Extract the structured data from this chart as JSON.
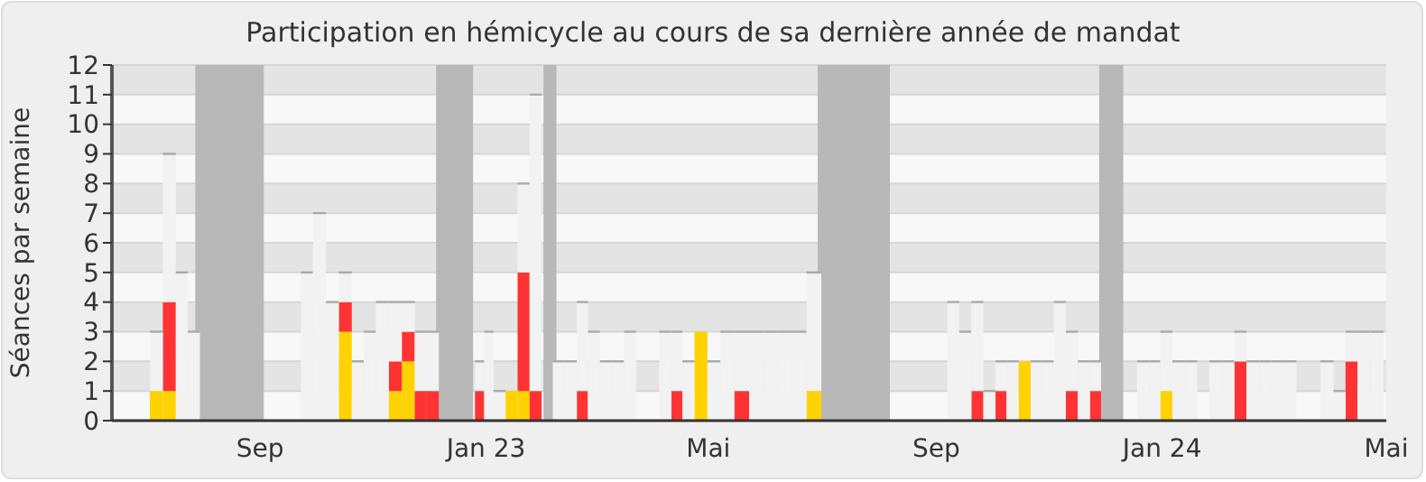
{
  "chart_data": {
    "type": "bar",
    "title": "Participation en hémicycle au cours de sa dernière année de mandat",
    "ylabel": "Séances par semaine",
    "stacked": true,
    "grid": "y",
    "x": [
      "2022-06-23",
      "2022-06-30",
      "2022-07-07",
      "2022-07-14",
      "2022-07-21",
      "2022-07-27",
      "2022-08-03",
      "2022-08-10",
      "2022-08-17",
      "2022-08-24",
      "2022-08-30",
      "2022-09-06",
      "2022-09-13",
      "2022-09-20",
      "2022-09-26",
      "2022-10-03",
      "2022-10-10",
      "2022-10-17",
      "2022-10-24",
      "2022-10-30",
      "2022-11-06",
      "2022-11-13",
      "2022-11-20",
      "2022-11-27",
      "2022-12-03",
      "2022-12-10",
      "2022-12-17",
      "2022-12-23",
      "2022-12-29",
      "2023-01-02",
      "2023-01-08",
      "2023-01-15",
      "2023-01-21",
      "2023-01-28",
      "2023-02-03",
      "2023-02-09",
      "2023-02-16",
      "2023-02-22",
      "2023-02-28",
      "2023-03-07",
      "2023-03-13",
      "2023-03-20",
      "2023-03-26",
      "2023-04-01",
      "2023-04-08",
      "2023-04-14",
      "2023-04-20",
      "2023-04-27",
      "2023-05-04",
      "2023-05-11",
      "2023-05-19",
      "2023-05-27",
      "2023-06-04",
      "2023-06-11",
      "2023-06-19",
      "2023-06-27",
      "2023-07-05",
      "2023-07-12",
      "2023-07-20",
      "2023-07-28",
      "2023-08-05",
      "2023-08-12",
      "2023-08-20",
      "2023-08-28",
      "2023-09-04",
      "2023-09-10",
      "2023-09-17",
      "2023-09-23",
      "2023-09-30",
      "2023-10-06",
      "2023-10-12",
      "2023-10-19",
      "2023-10-25",
      "2023-10-31",
      "2023-11-07",
      "2023-11-13",
      "2023-11-20",
      "2023-11-26",
      "2023-12-02",
      "2023-12-09",
      "2023-12-15",
      "2023-12-22",
      "2023-12-28",
      "2024-01-03",
      "2024-01-10",
      "2024-01-17",
      "2024-01-23",
      "2024-01-30",
      "2024-02-06",
      "2024-02-12",
      "2024-02-19",
      "2024-02-26",
      "2024-03-03",
      "2024-03-10",
      "2024-03-17",
      "2024-03-23",
      "2024-03-30",
      "2024-04-06",
      "2024-04-12",
      "2024-04-19",
      "2024-04-26"
    ],
    "series": [
      {
        "color": "#ffd200",
        "values": [
          0,
          0,
          1,
          1,
          0,
          0,
          0,
          0,
          0,
          0,
          0,
          0,
          0,
          0,
          0,
          0,
          0,
          3,
          0,
          0,
          0,
          1,
          2,
          0,
          0,
          0,
          0,
          0,
          0,
          0,
          0,
          1,
          1,
          0,
          0,
          0,
          0,
          0,
          0,
          0,
          0,
          0,
          0,
          0,
          0,
          0,
          0,
          3,
          0,
          0,
          0,
          0,
          0,
          0,
          0,
          1,
          0,
          0,
          0,
          0,
          0,
          0,
          0,
          0,
          0,
          0,
          0,
          0,
          0,
          0,
          0,
          2,
          0,
          0,
          0,
          0,
          0,
          0,
          0,
          0,
          0,
          0,
          0,
          1,
          0,
          0,
          0,
          0,
          0,
          0,
          0,
          0,
          0,
          0,
          0,
          0,
          0,
          0,
          0,
          0,
          0
        ]
      },
      {
        "color": "#ff3333",
        "values": [
          0,
          0,
          0,
          3,
          0,
          0,
          0,
          0,
          0,
          0,
          0,
          0,
          0,
          0,
          0,
          0,
          0,
          1,
          0,
          0,
          0,
          1,
          1,
          1,
          1,
          0,
          0,
          0,
          1,
          0,
          0,
          0,
          4,
          1,
          0,
          0,
          0,
          1,
          0,
          0,
          0,
          0,
          0,
          0,
          0,
          1,
          0,
          0,
          0,
          0,
          1,
          0,
          0,
          0,
          0,
          0,
          0,
          0,
          0,
          0,
          0,
          0,
          0,
          0,
          0,
          0,
          0,
          1,
          0,
          1,
          0,
          0,
          0,
          0,
          0,
          1,
          0,
          1,
          0,
          0,
          0,
          0,
          0,
          0,
          0,
          0,
          0,
          0,
          0,
          2,
          0,
          0,
          0,
          0,
          0,
          0,
          0,
          0,
          2,
          0,
          0
        ]
      },
      {
        "color": "#f2f2f2",
        "values": [
          0,
          0,
          2,
          5,
          5,
          3,
          0,
          0,
          0,
          0,
          0,
          0,
          0,
          0,
          5,
          7,
          4,
          1,
          2,
          3,
          4,
          2,
          1,
          2,
          2,
          0,
          0,
          0,
          1,
          3,
          1,
          0,
          3,
          10,
          0,
          2,
          2,
          3,
          3,
          2,
          2,
          3,
          0,
          0,
          3,
          2,
          2,
          0,
          2,
          3,
          2,
          3,
          3,
          3,
          3,
          4,
          0,
          0,
          0,
          0,
          0,
          0,
          0,
          0,
          0,
          4,
          3,
          3,
          1,
          1,
          2,
          0,
          2,
          2,
          4,
          2,
          2,
          1,
          0,
          0,
          0,
          2,
          2,
          2,
          2,
          2,
          0,
          2,
          2,
          1,
          2,
          2,
          2,
          2,
          0,
          0,
          2,
          1,
          1,
          3,
          3
        ]
      }
    ],
    "xlim": [
      "2022-06-13",
      "2024-05-01"
    ],
    "xticks": [
      {
        "value": "2022-09-01",
        "label": "Sep"
      },
      {
        "value": "2023-01-01",
        "label": "Jan 23"
      },
      {
        "value": "2023-05-01",
        "label": "Mai"
      },
      {
        "value": "2023-09-01",
        "label": "Sep"
      },
      {
        "value": "2024-01-01",
        "label": "Jan 24"
      },
      {
        "value": "2024-05-01",
        "label": "Mai"
      }
    ],
    "ylim": [
      0,
      12
    ],
    "yticks": [
      0,
      1,
      2,
      3,
      4,
      5,
      6,
      7,
      8,
      9,
      10,
      11,
      12
    ],
    "bands": [
      {
        "axis": "x",
        "from": "2022-07-28",
        "to": "2022-09-03",
        "color": "#b8b8b8"
      },
      {
        "axis": "x",
        "from": "2022-12-05",
        "to": "2022-12-25",
        "color": "#b8b8b8"
      },
      {
        "axis": "x",
        "from": "2023-02-01",
        "to": "2023-02-08",
        "color": "#b8b8b8"
      },
      {
        "axis": "x",
        "from": "2023-06-29",
        "to": "2023-08-07",
        "color": "#b8b8b8"
      },
      {
        "axis": "x",
        "from": "2023-11-28",
        "to": "2023-12-11",
        "color": "#b8b8b8"
      }
    ]
  }
}
